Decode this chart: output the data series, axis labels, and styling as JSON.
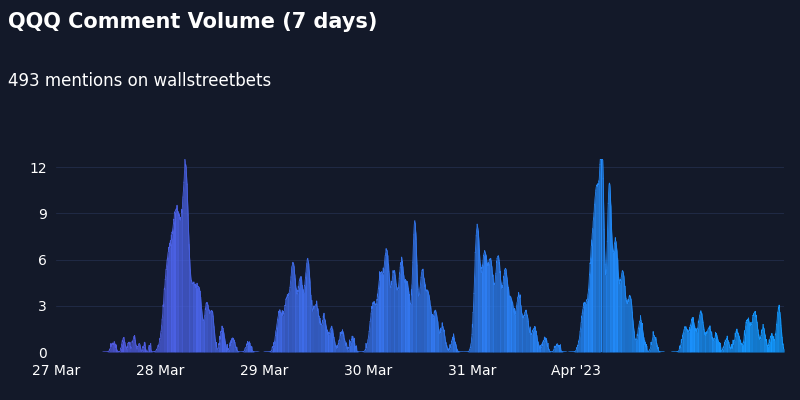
{
  "title": "QQQ Comment Volume (7 days)",
  "subtitle": "493 mentions on wallstreetbets",
  "background_color": "#131929",
  "text_color": "#ffffff",
  "yticks": [
    0,
    3,
    6,
    9,
    12
  ],
  "ylim": [
    0,
    13.5
  ],
  "xtick_labels": [
    "27 Mar",
    "28 Mar",
    "29 Mar",
    "30 Mar",
    "31 Mar",
    "Apr '23"
  ],
  "color_left": "#5555dd",
  "color_right": "#1199ff",
  "title_fontsize": 15,
  "subtitle_fontsize": 12
}
